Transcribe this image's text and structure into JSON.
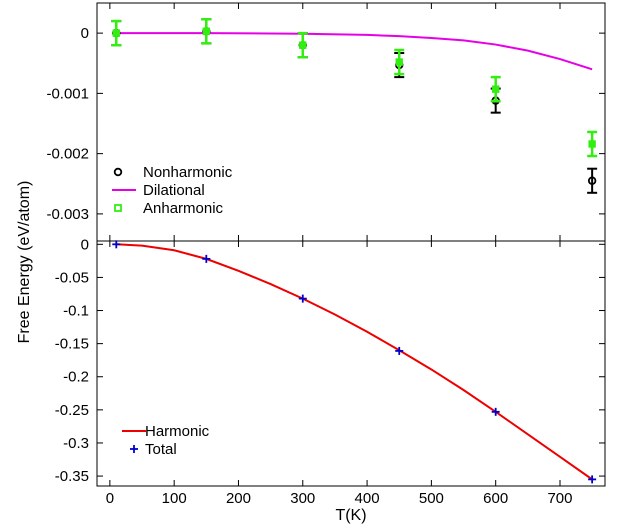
{
  "chart_data": [
    {
      "type": "line",
      "panel": "top",
      "title": "",
      "xlabel": "",
      "xlim": [
        -20,
        770
      ],
      "ylim": [
        -0.00345,
        0.0005
      ],
      "xticks": [
        0,
        100,
        200,
        300,
        400,
        500,
        600,
        700
      ],
      "yticks": [
        0,
        -0.001,
        -0.002,
        -0.003
      ],
      "ytick_labels": [
        "0",
        "-0.001",
        "-0.002",
        "-0.003"
      ],
      "grid": false,
      "legend_position": "lower-left",
      "colors": {
        "nonharmonic": "#000000",
        "dilational": "#e600e6",
        "anharmonic": "#33ee11"
      },
      "series": [
        {
          "name": "Nonharmonic",
          "style": "circle-errorbar",
          "x": [
            10,
            150,
            300,
            450,
            600,
            750
          ],
          "y": [
            0.0,
            3e-05,
            -0.0002,
            -0.00053,
            -0.00112,
            -0.00245
          ],
          "err": [
            0.0002,
            0.0002,
            0.0002,
            0.0002,
            0.0002,
            0.0002
          ]
        },
        {
          "name": "Dilational",
          "style": "line",
          "x": [
            10,
            150,
            300,
            400,
            450,
            500,
            550,
            600,
            650,
            700,
            750
          ],
          "y": [
            0.0,
            0.0,
            -1e-05,
            -3e-05,
            -5e-05,
            -8e-05,
            -0.00012,
            -0.00019,
            -0.00029,
            -0.00043,
            -0.0006
          ]
        },
        {
          "name": "Anharmonic",
          "style": "square-errorbar",
          "x": [
            10,
            150,
            300,
            450,
            600,
            750
          ],
          "y": [
            0.0,
            3e-05,
            -0.0002,
            -0.00048,
            -0.00093,
            -0.00184
          ],
          "err": [
            0.0002,
            0.0002,
            0.0002,
            0.0002,
            0.0002,
            0.0002
          ]
        }
      ]
    },
    {
      "type": "line",
      "panel": "bottom",
      "title": "",
      "xlabel": "T(K)",
      "xlim": [
        -20,
        770
      ],
      "ylim": [
        -0.365,
        0.005
      ],
      "xticks": [
        0,
        100,
        200,
        300,
        400,
        500,
        600,
        700
      ],
      "yticks": [
        0,
        -0.05,
        -0.1,
        -0.15,
        -0.2,
        -0.25,
        -0.3,
        -0.35
      ],
      "ytick_labels": [
        "0",
        "-0.05",
        "-0.1",
        "-0.15",
        "-0.2",
        "-0.25",
        "-0.3",
        "-0.35"
      ],
      "grid": false,
      "legend_position": "lower-left",
      "colors": {
        "harmonic": "#ee0000",
        "total": "#0000cc"
      },
      "series": [
        {
          "name": "Harmonic",
          "style": "line",
          "x": [
            10,
            50,
            100,
            150,
            200,
            250,
            300,
            350,
            400,
            450,
            500,
            550,
            600,
            650,
            700,
            750
          ],
          "y": [
            0.0,
            -0.002,
            -0.009,
            -0.022,
            -0.04,
            -0.06,
            -0.082,
            -0.106,
            -0.132,
            -0.16,
            -0.189,
            -0.22,
            -0.253,
            -0.287,
            -0.321,
            -0.355
          ]
        },
        {
          "name": "Total",
          "style": "plus",
          "x": [
            10,
            150,
            300,
            450,
            600,
            750
          ],
          "y": [
            0.0,
            -0.022,
            -0.082,
            -0.161,
            -0.253,
            -0.355
          ]
        }
      ]
    }
  ],
  "shared_ylabel": "Free Energy (eV/atom)"
}
